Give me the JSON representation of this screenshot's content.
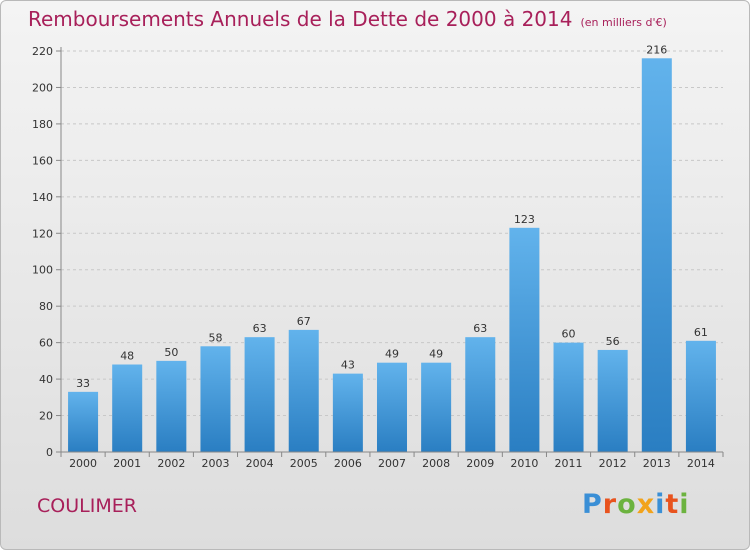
{
  "header": {
    "title": "Remboursements Annuels de la Dette de 2000 à 2014",
    "subtitle": "(en milliers d'€)"
  },
  "footer": {
    "commune": "COULIMER",
    "logo_text": "Proxiti",
    "logo_colors": [
      "#3a8fd6",
      "#e8531e",
      "#6cb33f",
      "#f2a31b",
      "#3a8fd6",
      "#e8531e",
      "#6cb33f"
    ]
  },
  "colors": {
    "bar_light": "#62b3ec",
    "bar_dark": "#2a7ec2",
    "grid": "#c8c8c8",
    "axis_text": "#333333",
    "title": "#a8205a"
  },
  "chart_data": {
    "type": "bar",
    "categories": [
      "2000",
      "2001",
      "2002",
      "2003",
      "2004",
      "2005",
      "2006",
      "2007",
      "2008",
      "2009",
      "2010",
      "2011",
      "2012",
      "2013",
      "2014"
    ],
    "values": [
      33,
      48,
      50,
      58,
      63,
      67,
      43,
      49,
      49,
      63,
      123,
      60,
      56,
      216,
      61
    ],
    "ylim": [
      0,
      220
    ],
    "yticks": [
      0,
      20,
      40,
      60,
      80,
      100,
      120,
      140,
      160,
      180,
      200,
      220
    ],
    "grid": "horizontal-dashed",
    "data_labels": true
  }
}
